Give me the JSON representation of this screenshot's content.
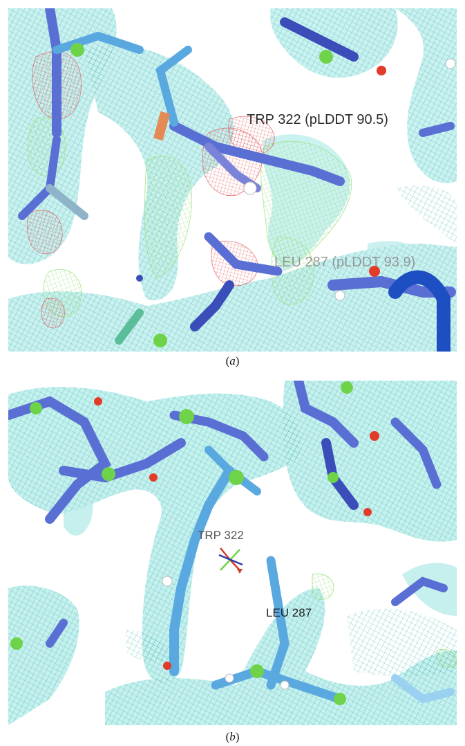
{
  "figure": {
    "panels": [
      {
        "id": "a",
        "caption": "a",
        "labels": [
          "TRP 322 (pLDDT 90.5)",
          "LEU 287 (pLDDT 93.9)"
        ]
      },
      {
        "id": "b",
        "caption": "b",
        "labels": [
          "TRP 322",
          "LEU 287"
        ]
      }
    ]
  },
  "colors": {
    "density_mesh": "#2fb8b3",
    "density_surface": "#8ee3df",
    "model_blue": "#5a6fd4",
    "model_light": "#5aa8e0",
    "positive_difference": "#7ed957",
    "negative_difference": "#e0454a",
    "atom_green": "#6fd34a",
    "oxygen_red": "#e23b2a"
  },
  "icons": [
    "axis-triad-icon"
  ]
}
